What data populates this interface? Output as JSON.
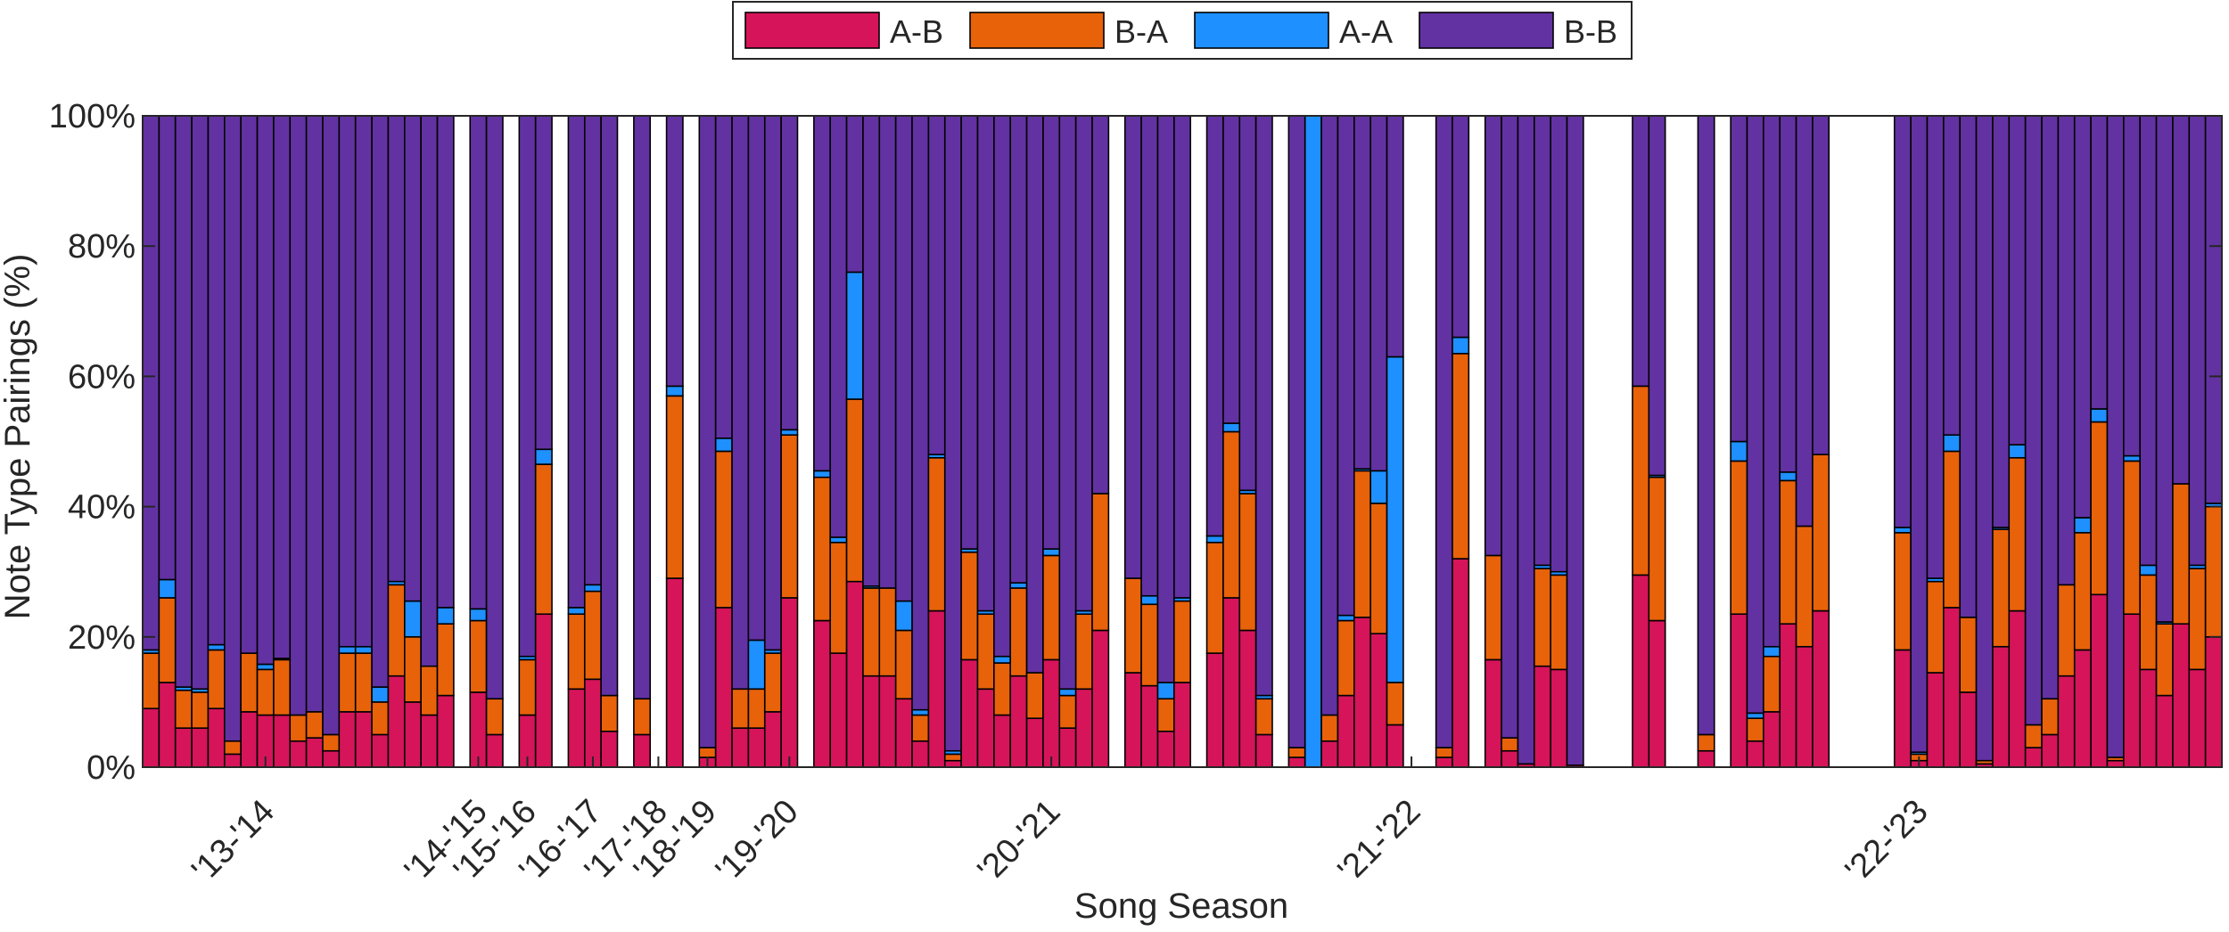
{
  "chart_data": {
    "type": "bar",
    "stacked": true,
    "percent": true,
    "title": "",
    "xlabel": "Song Season",
    "ylabel": "Note Type Pairings (%)",
    "ylim": [
      0,
      100
    ],
    "ytick_values": [
      0,
      20,
      40,
      60,
      80,
      100
    ],
    "ytick_labels": [
      "0%",
      "20%",
      "40%",
      "60%",
      "80%",
      "100%"
    ],
    "legend_position": "top-center",
    "series": [
      {
        "name": "A-B",
        "color": "#D6145A"
      },
      {
        "name": "B-A",
        "color": "#E8620A"
      },
      {
        "name": "A-A",
        "color": "#1E90FF"
      },
      {
        "name": "B-B",
        "color": "#6232A2"
      }
    ],
    "season_labels": [
      {
        "label": "'13-'14",
        "at_bar": 7.5
      },
      {
        "label": "'14-'15",
        "at_bar": 20.5
      },
      {
        "label": "'15-'16",
        "at_bar": 23.5
      },
      {
        "label": "'16-'17",
        "at_bar": 27.5
      },
      {
        "label": "'17-'18",
        "at_bar": 31.5
      },
      {
        "label": "'18-'19",
        "at_bar": 34.5
      },
      {
        "label": "'19-'20",
        "at_bar": 39.5
      },
      {
        "label": "'20-'21",
        "at_bar": 55.5
      },
      {
        "label": "'21-'22",
        "at_bar": 77.5
      },
      {
        "label": "'22-'23",
        "at_bar": 108.5
      }
    ],
    "bars": [
      {
        "ab": 9,
        "ba": 8.5,
        "aa": 0.5
      },
      {
        "ab": 13,
        "ba": 13,
        "aa": 2.8
      },
      {
        "ab": 6,
        "ba": 5.8,
        "aa": 0.5
      },
      {
        "ab": 6,
        "ba": 5.5,
        "aa": 0.5
      },
      {
        "ab": 9,
        "ba": 9,
        "aa": 0.8
      },
      {
        "ab": 2,
        "ba": 2,
        "aa": 0
      },
      {
        "ab": 8.5,
        "ba": 9,
        "aa": 0
      },
      {
        "ab": 8,
        "ba": 7,
        "aa": 0.8
      },
      {
        "ab": 8,
        "ba": 8.5,
        "aa": 0.2
      },
      {
        "ab": 4,
        "ba": 4,
        "aa": 0
      },
      {
        "ab": 4.5,
        "ba": 4,
        "aa": 0
      },
      {
        "ab": 2.5,
        "ba": 2.5,
        "aa": 0
      },
      {
        "ab": 8.5,
        "ba": 9,
        "aa": 1
      },
      {
        "ab": 8.5,
        "ba": 9,
        "aa": 1
      },
      {
        "ab": 5,
        "ba": 5,
        "aa": 2.3
      },
      {
        "ab": 14,
        "ba": 14,
        "aa": 0.5
      },
      {
        "ab": 10,
        "ba": 10,
        "aa": 5.5
      },
      {
        "ab": 8,
        "ba": 7.5,
        "aa": 0
      },
      {
        "ab": 11,
        "ba": 11,
        "aa": 2.5
      },
      null,
      {
        "ab": 11.5,
        "ba": 11,
        "aa": 1.8
      },
      {
        "ab": 5,
        "ba": 5.5,
        "aa": 0
      },
      null,
      {
        "ab": 8,
        "ba": 8.5,
        "aa": 0.5
      },
      {
        "ab": 23.5,
        "ba": 23,
        "aa": 2.3
      },
      null,
      {
        "ab": 12,
        "ba": 11.5,
        "aa": 1
      },
      {
        "ab": 13.5,
        "ba": 13.5,
        "aa": 1
      },
      {
        "ab": 5.5,
        "ba": 5.5,
        "aa": 0
      },
      null,
      {
        "ab": 5,
        "ba": 5.5,
        "aa": 0
      },
      null,
      {
        "ab": 29,
        "ba": 28,
        "aa": 1.5
      },
      null,
      {
        "ab": 1.5,
        "ba": 1.5,
        "aa": 0
      },
      {
        "ab": 24.5,
        "ba": 24,
        "aa": 2
      },
      {
        "ab": 6,
        "ba": 6,
        "aa": 0
      },
      {
        "ab": 6,
        "ba": 6,
        "aa": 7.5
      },
      {
        "ab": 8.5,
        "ba": 9,
        "aa": 0.5
      },
      {
        "ab": 26,
        "ba": 25,
        "aa": 0.8
      },
      null,
      {
        "ab": 22.5,
        "ba": 22,
        "aa": 1
      },
      {
        "ab": 17.5,
        "ba": 17,
        "aa": 0.8
      },
      {
        "ab": 28.5,
        "ba": 28,
        "aa": 19.5
      },
      {
        "ab": 14,
        "ba": 13.5,
        "aa": 0.3
      },
      {
        "ab": 14,
        "ba": 13.5,
        "aa": 0
      },
      {
        "ab": 10.5,
        "ba": 10.5,
        "aa": 4.5
      },
      {
        "ab": 4,
        "ba": 4,
        "aa": 0.8
      },
      {
        "ab": 24,
        "ba": 23.5,
        "aa": 0.5
      },
      {
        "ab": 1,
        "ba": 1,
        "aa": 0.5
      },
      {
        "ab": 16.5,
        "ba": 16.5,
        "aa": 0.5
      },
      {
        "ab": 12,
        "ba": 11.5,
        "aa": 0.5
      },
      {
        "ab": 8,
        "ba": 8,
        "aa": 1
      },
      {
        "ab": 14,
        "ba": 13.5,
        "aa": 0.8
      },
      {
        "ab": 7.5,
        "ba": 7,
        "aa": 0
      },
      {
        "ab": 16.5,
        "ba": 16,
        "aa": 1
      },
      {
        "ab": 6,
        "ba": 5,
        "aa": 1
      },
      {
        "ab": 12,
        "ba": 11.5,
        "aa": 0.5
      },
      {
        "ab": 21,
        "ba": 21,
        "aa": 0
      },
      null,
      {
        "ab": 14.5,
        "ba": 14.5,
        "aa": 0
      },
      {
        "ab": 12.5,
        "ba": 12.5,
        "aa": 1.3
      },
      {
        "ab": 5.5,
        "ba": 5,
        "aa": 2.5
      },
      {
        "ab": 13,
        "ba": 12.5,
        "aa": 0.5
      },
      null,
      {
        "ab": 17.5,
        "ba": 17,
        "aa": 1
      },
      {
        "ab": 26,
        "ba": 25.5,
        "aa": 1.3
      },
      {
        "ab": 21,
        "ba": 21,
        "aa": 0.5
      },
      {
        "ab": 5,
        "ba": 5.5,
        "aa": 0.5
      },
      null,
      {
        "ab": 1.5,
        "ba": 1.5,
        "aa": 0
      },
      {
        "ab": 0,
        "ba": 0,
        "aa": 100
      },
      {
        "ab": 4,
        "ba": 4,
        "aa": 0
      },
      {
        "ab": 11,
        "ba": 11.5,
        "aa": 0.8
      },
      {
        "ab": 23,
        "ba": 22.5,
        "aa": 0.3
      },
      {
        "ab": 20.5,
        "ba": 20,
        "aa": 5
      },
      {
        "ab": 6.5,
        "ba": 6.5,
        "aa": 50
      },
      null,
      null,
      {
        "ab": 1.5,
        "ba": 1.5,
        "aa": 0
      },
      {
        "ab": 32,
        "ba": 31.5,
        "aa": 2.5
      },
      null,
      {
        "ab": 16.5,
        "ba": 16,
        "aa": 0
      },
      {
        "ab": 2.5,
        "ba": 2,
        "aa": 0
      },
      {
        "ab": 0.5,
        "ba": 0,
        "aa": 0
      },
      {
        "ab": 15.5,
        "ba": 15,
        "aa": 0.5
      },
      {
        "ab": 15,
        "ba": 14.5,
        "aa": 0.5
      },
      {
        "ab": 0.3,
        "ba": 0,
        "aa": 0
      },
      null,
      null,
      null,
      {
        "ab": 29.5,
        "ba": 29,
        "aa": 0
      },
      {
        "ab": 22.5,
        "ba": 22,
        "aa": 0.3
      },
      null,
      null,
      {
        "ab": 2.5,
        "ba": 2.5,
        "aa": 0
      },
      null,
      {
        "ab": 23.5,
        "ba": 23.5,
        "aa": 3
      },
      {
        "ab": 4,
        "ba": 3.5,
        "aa": 0.8
      },
      {
        "ab": 8.5,
        "ba": 8.5,
        "aa": 1.5
      },
      {
        "ab": 22,
        "ba": 22,
        "aa": 1.3
      },
      {
        "ab": 18.5,
        "ba": 18.5,
        "aa": 0
      },
      {
        "ab": 24,
        "ba": 24,
        "aa": 0
      },
      null,
      null,
      null,
      null,
      {
        "ab": 18,
        "ba": 18,
        "aa": 0.8
      },
      {
        "ab": 1,
        "ba": 1,
        "aa": 0.3
      },
      {
        "ab": 14.5,
        "ba": 14,
        "aa": 0.5
      },
      {
        "ab": 24.5,
        "ba": 24,
        "aa": 2.5
      },
      {
        "ab": 11.5,
        "ba": 11.5,
        "aa": 0
      },
      {
        "ab": 0.5,
        "ba": 0.5,
        "aa": 0
      },
      {
        "ab": 18.5,
        "ba": 18,
        "aa": 0.3
      },
      {
        "ab": 24,
        "ba": 23.5,
        "aa": 2
      },
      {
        "ab": 3,
        "ba": 3.5,
        "aa": 0
      },
      {
        "ab": 5,
        "ba": 5.5,
        "aa": 0
      },
      {
        "ab": 14,
        "ba": 14,
        "aa": 0
      },
      {
        "ab": 18,
        "ba": 18,
        "aa": 2.3
      },
      {
        "ab": 26.5,
        "ba": 26.5,
        "aa": 2
      },
      {
        "ab": 1,
        "ba": 0.5,
        "aa": 0
      },
      {
        "ab": 23.5,
        "ba": 23.5,
        "aa": 0.8
      },
      {
        "ab": 15,
        "ba": 14.5,
        "aa": 1.5
      },
      {
        "ab": 11,
        "ba": 11,
        "aa": 0.3
      },
      {
        "ab": 22,
        "ba": 21.5,
        "aa": 0
      },
      {
        "ab": 15,
        "ba": 15.5,
        "aa": 0.5
      },
      {
        "ab": 20,
        "ba": 20,
        "aa": 0.5
      }
    ]
  }
}
